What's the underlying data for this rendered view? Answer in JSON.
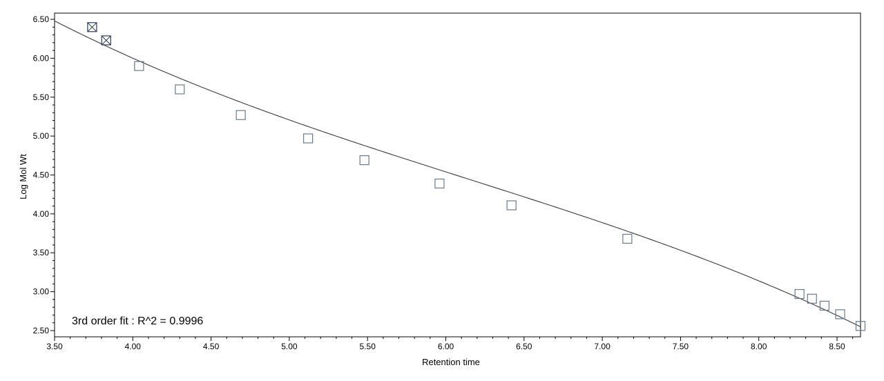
{
  "chart_data": {
    "type": "scatter",
    "title": "",
    "xlabel": "Retention time",
    "ylabel": "Log Mol Wt",
    "xlim": [
      3.5,
      8.65
    ],
    "ylim": [
      2.42,
      6.58
    ],
    "x_ticks": [
      "3.50",
      "4.00",
      "4.50",
      "5.00",
      "5.50",
      "6.00",
      "6.50",
      "7.00",
      "7.50",
      "8.00",
      "8.50"
    ],
    "y_ticks": [
      "2.50",
      "3.00",
      "3.50",
      "4.00",
      "4.50",
      "5.00",
      "5.50",
      "6.00",
      "6.50"
    ],
    "grid": false,
    "annotation": "3rd order fit : R^2 = 0.9996",
    "fit": {
      "order": 3,
      "r_squared": 0.9996,
      "curve_x": [
        3.5,
        4.0,
        4.5,
        5.0,
        5.5,
        6.0,
        6.5,
        7.0,
        7.5,
        8.0,
        8.65
      ],
      "curve_y": [
        6.5,
        5.98,
        5.56,
        5.21,
        4.88,
        4.55,
        4.22,
        3.9,
        3.53,
        3.1,
        2.57
      ]
    },
    "points": [
      {
        "x": 3.74,
        "y": 6.4,
        "excluded": true
      },
      {
        "x": 3.83,
        "y": 6.23,
        "excluded": true
      },
      {
        "x": 4.04,
        "y": 5.9,
        "excluded": false
      },
      {
        "x": 4.3,
        "y": 5.6,
        "excluded": false
      },
      {
        "x": 4.69,
        "y": 5.27,
        "excluded": false
      },
      {
        "x": 5.12,
        "y": 4.97,
        "excluded": false
      },
      {
        "x": 5.48,
        "y": 4.69,
        "excluded": false
      },
      {
        "x": 5.96,
        "y": 4.39,
        "excluded": false
      },
      {
        "x": 6.42,
        "y": 4.11,
        "excluded": false
      },
      {
        "x": 7.16,
        "y": 3.68,
        "excluded": false
      },
      {
        "x": 8.26,
        "y": 2.97,
        "excluded": false
      },
      {
        "x": 8.34,
        "y": 2.91,
        "excluded": false
      },
      {
        "x": 8.42,
        "y": 2.82,
        "excluded": false
      },
      {
        "x": 8.52,
        "y": 2.71,
        "excluded": false
      },
      {
        "x": 8.65,
        "y": 2.56,
        "excluded": false
      }
    ],
    "colors": {
      "marker": "#6a7a8c",
      "marker_excluded": "#2a3a5a",
      "curve": "#3a3a3a",
      "axis": "#000000"
    }
  }
}
